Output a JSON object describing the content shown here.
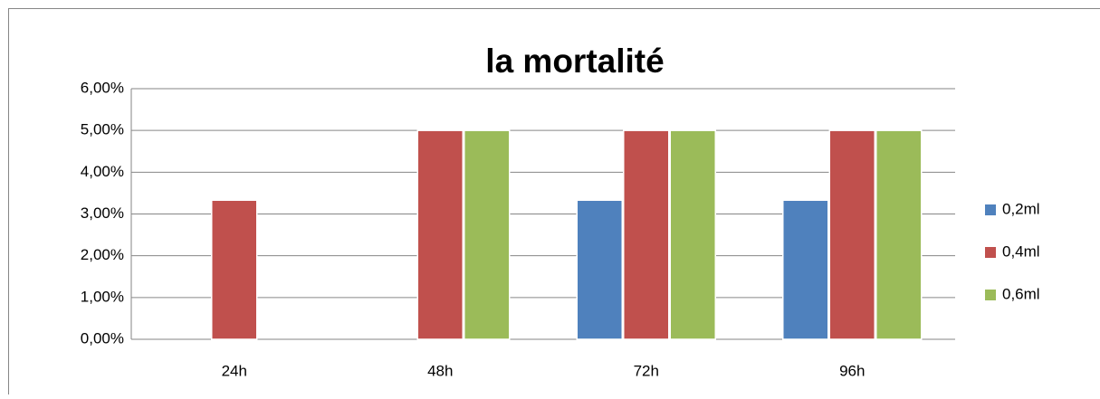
{
  "chart_data": {
    "type": "bar",
    "title": "la mortalité",
    "categories": [
      "24h",
      "48h",
      "72h",
      "96h"
    ],
    "series": [
      {
        "name": "0,2ml",
        "color": "#4f81bd",
        "values": [
          0,
          0,
          3.33,
          3.33
        ]
      },
      {
        "name": "0,4ml",
        "color": "#c0504d",
        "values": [
          3.33,
          5,
          5,
          5
        ]
      },
      {
        "name": "0,6ml",
        "color": "#9bbb59",
        "values": [
          0,
          5,
          5,
          5
        ]
      }
    ],
    "ylim": [
      0,
      6
    ],
    "yticks": [
      {
        "value": 0,
        "label": "0,00%"
      },
      {
        "value": 1,
        "label": "1,00%"
      },
      {
        "value": 2,
        "label": "2,00%"
      },
      {
        "value": 3,
        "label": "3,00%"
      },
      {
        "value": 4,
        "label": "4,00%"
      },
      {
        "value": 5,
        "label": "5,00%"
      },
      {
        "value": 6,
        "label": "6,00%"
      }
    ],
    "grid": true,
    "legend": "right"
  }
}
